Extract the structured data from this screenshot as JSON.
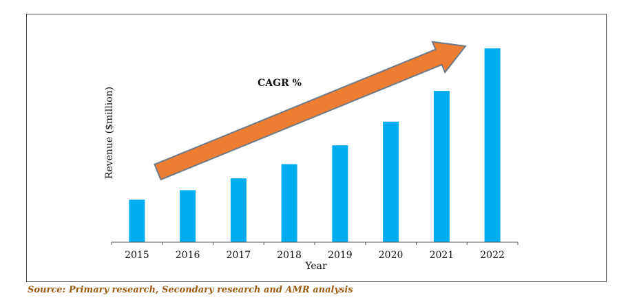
{
  "chart_data": {
    "type": "bar",
    "categories": [
      "2015",
      "2016",
      "2017",
      "2018",
      "2019",
      "2020",
      "2021",
      "2022"
    ],
    "values": [
      18,
      22,
      27,
      33,
      41,
      51,
      64,
      82
    ],
    "xlabel": "Year",
    "ylabel": "Revenue ($million)",
    "ylim": [
      0,
      85
    ],
    "grid": false,
    "legend": "none",
    "annotation": "CAGR %",
    "bar_color": "#00AEEF",
    "arrow_color": "#ED7D31",
    "arrow_outline": "#6D7A8A"
  },
  "source_note": "Source: Primary research, Secondary research and AMR analysis"
}
